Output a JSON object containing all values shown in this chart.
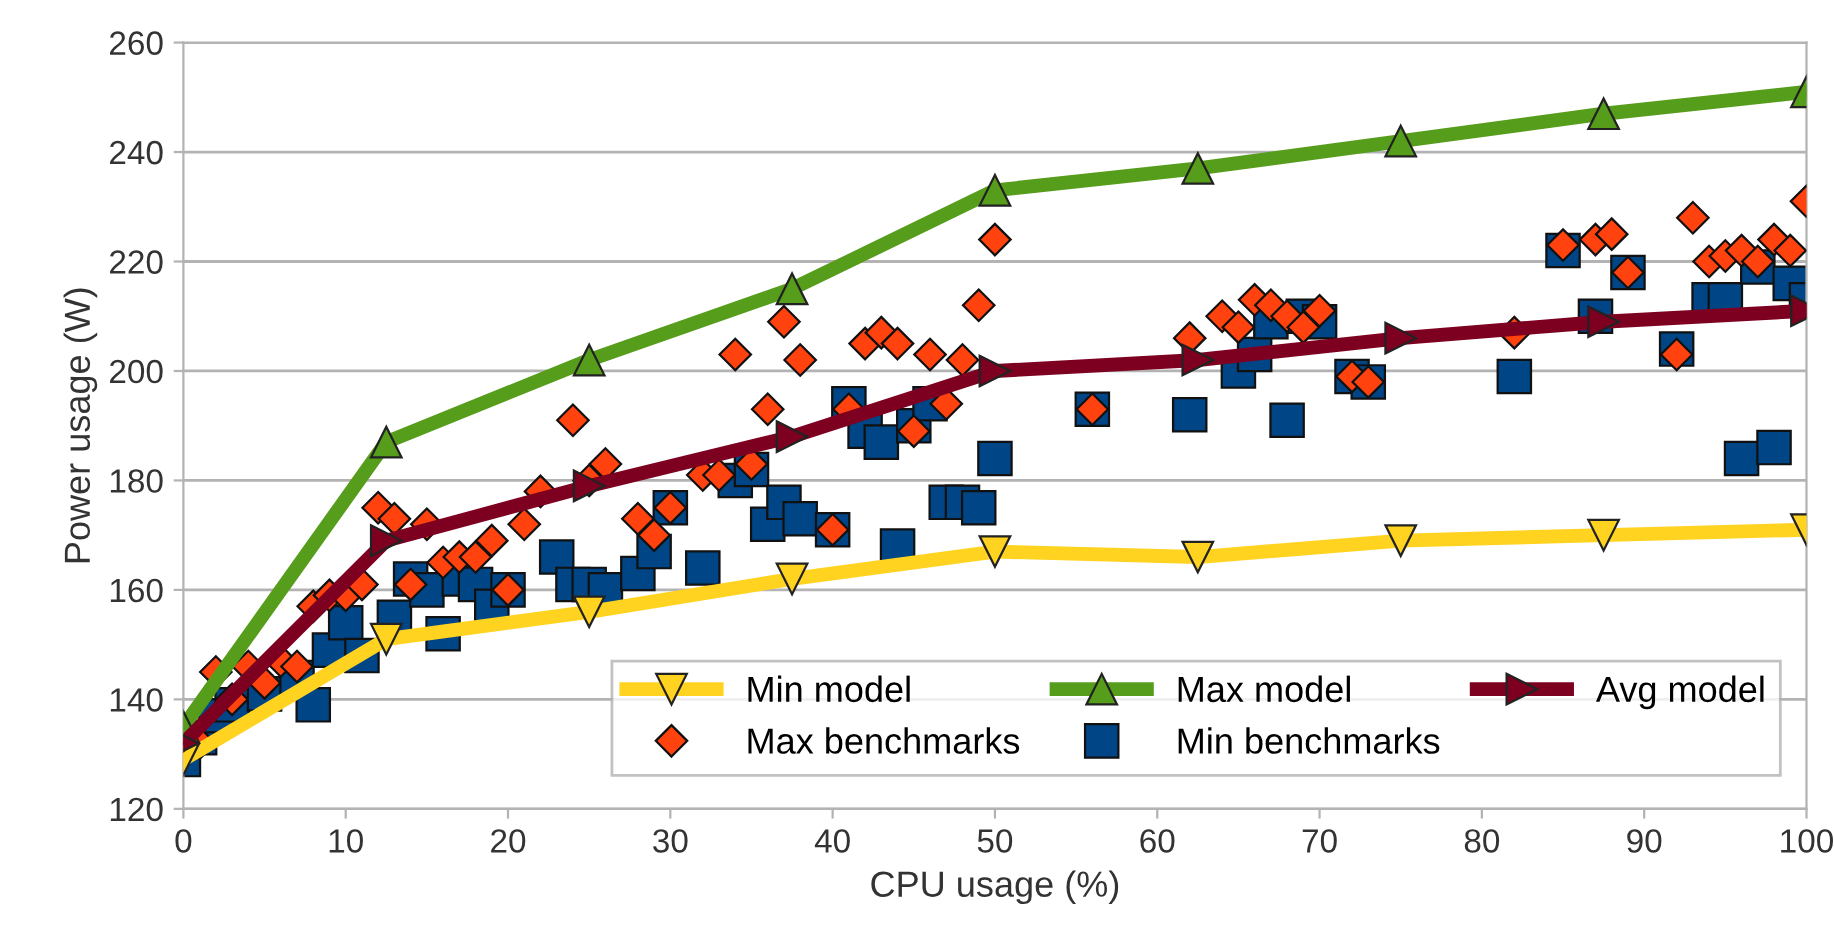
{
  "chart_data": {
    "type": "line",
    "xlabel": "CPU usage (%)",
    "ylabel": "Power usage (W)",
    "xlim": [
      0,
      100
    ],
    "xticks": [
      0,
      10,
      20,
      30,
      40,
      50,
      60,
      70,
      80,
      90,
      100
    ],
    "ylim": [
      120,
      260
    ],
    "yticks": [
      120,
      140,
      160,
      180,
      200,
      220,
      240,
      260
    ],
    "grid": "y",
    "legend": "bottom right",
    "series": [
      {
        "name": "Min model",
        "color": "#ffd320",
        "marker": "triangle_down",
        "x": [
          0,
          12.5,
          25,
          37.5,
          50,
          62.5,
          75,
          87.5,
          100
        ],
        "values": [
          129,
          151,
          156,
          162,
          167,
          166,
          169,
          170,
          171
        ]
      },
      {
        "name": "Max model",
        "color": "#579d1c",
        "marker": "triangle",
        "x": [
          0,
          12.5,
          25,
          37.5,
          50,
          62.5,
          75,
          87.5,
          100
        ],
        "values": [
          135,
          187,
          202,
          215,
          233,
          237,
          242,
          247,
          251
        ]
      },
      {
        "name": "Avg model",
        "color": "#7e0021",
        "marker": "triangle_right",
        "x": [
          0,
          12.5,
          25,
          37.5,
          50,
          62.5,
          75,
          87.5,
          100
        ],
        "values": [
          132,
          169,
          179,
          188,
          200,
          202,
          206,
          209,
          211
        ]
      },
      {
        "name": "Max benchmarks",
        "type": "scatter",
        "color": "#ff420e",
        "marker": "diamond",
        "x": [
          1,
          2,
          3,
          4,
          5,
          6,
          7,
          8,
          9,
          10,
          11,
          12,
          13,
          14,
          15,
          16,
          17,
          18,
          19,
          20,
          21,
          22,
          24,
          25,
          26,
          28,
          29,
          30,
          32,
          33,
          34,
          35,
          36,
          37,
          38,
          40,
          41,
          42,
          43,
          44,
          45,
          46,
          47,
          48,
          49,
          50,
          56,
          62,
          64,
          65,
          66,
          67,
          68,
          69,
          70,
          72,
          73,
          82,
          85,
          87,
          88,
          89,
          92,
          93,
          94,
          95,
          96,
          97,
          98,
          99,
          100
        ],
        "values": [
          132,
          145,
          140,
          146,
          143,
          147,
          146,
          157,
          159,
          159,
          161,
          175,
          173,
          161,
          172,
          165,
          166,
          166,
          169,
          160,
          172,
          178,
          191,
          180,
          183,
          173,
          170,
          175,
          181,
          181,
          203,
          183,
          193,
          209,
          202,
          171,
          193,
          205,
          207,
          205,
          189,
          203,
          194,
          202,
          212,
          224,
          193,
          206,
          210,
          208,
          213,
          212,
          210,
          208,
          211,
          199,
          198,
          207,
          223,
          224,
          225,
          218,
          203,
          228,
          220,
          221,
          222,
          220,
          224,
          222,
          231
        ]
      },
      {
        "name": "Min benchmarks",
        "type": "scatter",
        "color": "#004586",
        "marker": "square",
        "x": [
          0,
          1,
          2,
          3,
          5,
          7,
          8,
          9,
          10,
          11,
          13,
          14,
          15,
          16,
          17,
          18,
          19,
          20,
          23,
          24,
          25,
          26,
          28,
          29,
          30,
          32,
          34,
          35,
          36,
          37,
          38,
          40,
          41,
          42,
          43,
          44,
          45,
          46,
          47,
          48,
          49,
          50,
          56,
          62,
          65,
          66,
          67,
          68,
          69,
          70,
          72,
          73,
          82,
          85,
          87,
          89,
          92,
          94,
          95,
          96,
          97,
          98,
          99,
          100
        ],
        "values": [
          129,
          133,
          137,
          139,
          141,
          144,
          139,
          149,
          154,
          148,
          155,
          162,
          160,
          152,
          162,
          161,
          157,
          160,
          166,
          161,
          161,
          160,
          163,
          167,
          175,
          164,
          180,
          182,
          172,
          176,
          173,
          171,
          194,
          189,
          187,
          168,
          190,
          194,
          176,
          176,
          175,
          184,
          193,
          192,
          200,
          203,
          209,
          191,
          210,
          209,
          199,
          198,
          199,
          222,
          210,
          218,
          204,
          213,
          213,
          184,
          219,
          186,
          216,
          213
        ]
      }
    ]
  }
}
